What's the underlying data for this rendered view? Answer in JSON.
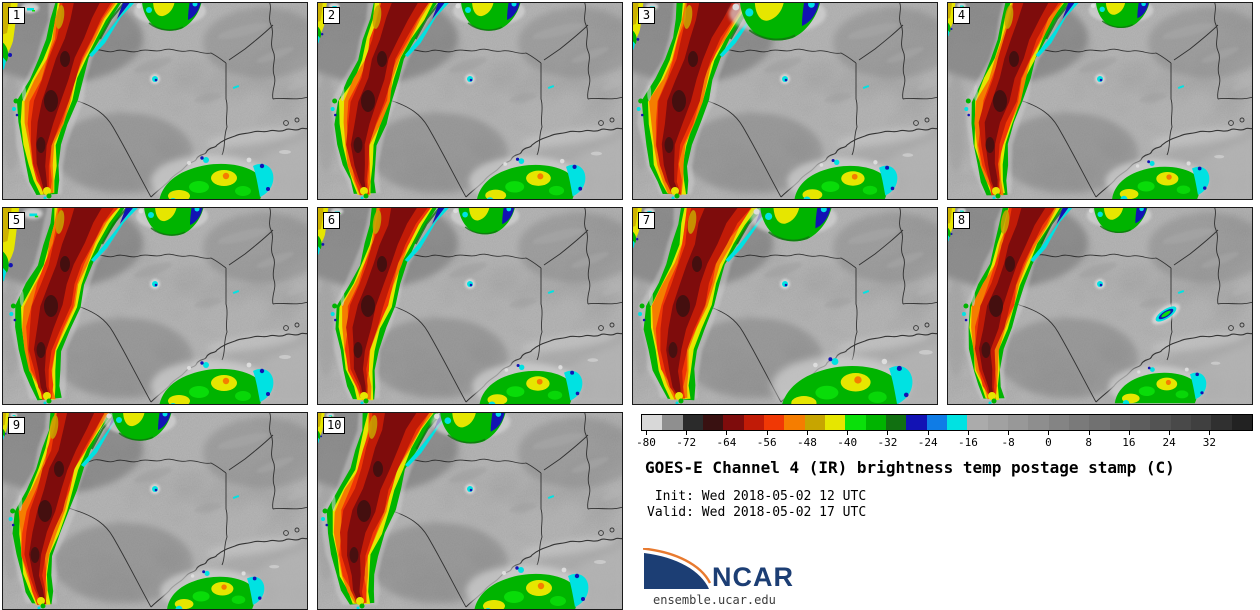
{
  "figure": {
    "background": "#ffffff",
    "panel_border": "#1a1a1a"
  },
  "panels": [
    {
      "label": "1"
    },
    {
      "label": "2"
    },
    {
      "label": "3"
    },
    {
      "label": "4"
    },
    {
      "label": "5"
    },
    {
      "label": "6"
    },
    {
      "label": "7"
    },
    {
      "label": "8"
    },
    {
      "label": "9"
    },
    {
      "label": "10"
    }
  ],
  "legend": {
    "title": "GOES-E Channel 4 (IR) brightness temp postage stamp (C)",
    "init_line": " Init: Wed 2018-05-02 12 UTC",
    "valid_line": "Valid: Wed 2018-05-02 17 UTC",
    "colorbar": {
      "unit": "C",
      "range_min": -80,
      "range_max": 40,
      "segment_step": 4,
      "tick_step": 8,
      "tick_values": [
        "-80",
        "-72",
        "-64",
        "-56",
        "-48",
        "-40",
        "-32",
        "-24",
        "-16",
        "-8",
        "0",
        "8",
        "16",
        "24",
        "32"
      ],
      "segment_colors": [
        "#d8d8d8",
        "#8f8f8f",
        "#2b2b2b",
        "#391111",
        "#7e0c0c",
        "#c11b07",
        "#f03805",
        "#f57d00",
        "#c7a500",
        "#e6e600",
        "#0ae00a",
        "#00b400",
        "#117011",
        "#1212b4",
        "#0f7ce6",
        "#00e2e2",
        "#ababab",
        "#a1a1a1",
        "#989898",
        "#8e8e8e",
        "#848484",
        "#7a7a7a",
        "#717171",
        "#676767",
        "#5d5d5d",
        "#535353",
        "#494949",
        "#404040",
        "#303030",
        "#222222"
      ]
    }
  },
  "branding": {
    "logo_text": "NCAR",
    "site_text": "ensemble.ucar.edu",
    "logo_blue": "#1c3e74",
    "logo_orange": "#e87a2f"
  }
}
